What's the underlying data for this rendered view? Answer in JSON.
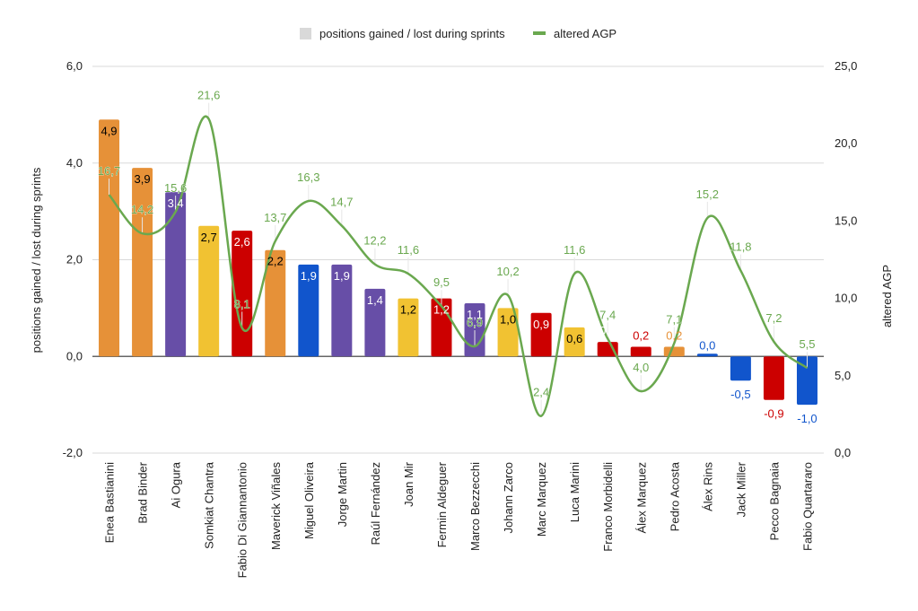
{
  "chart_data": {
    "type": "bar",
    "title": "",
    "legend": {
      "position": "top",
      "entries": [
        {
          "name": "positions gained / lost during sprints",
          "type": "bar",
          "color": "#d9d9d9"
        },
        {
          "name": "altered AGP",
          "type": "line",
          "color": "#6aa84f"
        }
      ]
    },
    "categories": [
      "Enea Bastianini",
      "Brad Binder",
      "Ai Ogura",
      "Somkiat Chantra",
      "Fabio Di Giannantonio",
      "Maverick Viñales",
      "Miguel Oliveira",
      "Jorge Martin",
      "Raúl Fernández",
      "Joan Mir",
      "Fermin Aldeguer",
      "Marco Bezzecchi",
      "Johann  Zarco",
      "Marc Marquez",
      "Luca Marini",
      "Franco Morbidelli",
      "Álex Marquez",
      "Pedro Acosta",
      "Álex Rins",
      "Jack Miller",
      "Pecco Bagnaia",
      "Fabio Quartararo"
    ],
    "series": [
      {
        "name": "positions gained / lost during sprints",
        "type": "bar",
        "axis": "left",
        "values": [
          4.9,
          3.9,
          3.4,
          2.7,
          2.6,
          2.2,
          1.9,
          1.9,
          1.4,
          1.2,
          1.2,
          1.1,
          1.0,
          0.9,
          0.6,
          0.3,
          0.2,
          0.2,
          0.0,
          -0.5,
          -0.9,
          -1.0
        ],
        "labels": [
          "4,9",
          "3,9",
          "3,4",
          "2,7",
          "2,6",
          "2,2",
          "1,9",
          "1,9",
          "1,4",
          "1,2",
          "1,2",
          "1,1",
          "1,0",
          "0,9",
          "0,6",
          "0,3",
          "0,2",
          "0,2",
          "0,0",
          "-0,5",
          "-0,9",
          "-1,0"
        ],
        "colors": [
          "#e69138",
          "#e69138",
          "#674ea7",
          "#f1c232",
          "#cc0000",
          "#e69138",
          "#1155cc",
          "#674ea7",
          "#674ea7",
          "#f1c232",
          "#cc0000",
          "#674ea7",
          "#f1c232",
          "#cc0000",
          "#f1c232",
          "#cc0000",
          "#cc0000",
          "#e69138",
          "#1155cc",
          "#1155cc",
          "#cc0000",
          "#1155cc"
        ],
        "label_colors": [
          "#000000",
          "#000000",
          "#ffffff",
          "#000000",
          "#ffffff",
          "#000000",
          "#ffffff",
          "#ffffff",
          "#ffffff",
          "#000000",
          "#ffffff",
          "#ffffff",
          "#000000",
          "#ffffff",
          "#000000",
          "#ffffff",
          "#cc0000",
          "#e69138",
          "#1155cc",
          "#1155cc",
          "#cc0000",
          "#1155cc"
        ]
      },
      {
        "name": "altered AGP",
        "type": "line",
        "smooth": true,
        "axis": "right",
        "color": "#6aa84f",
        "values": [
          16.7,
          14.2,
          15.6,
          21.6,
          8.1,
          13.7,
          16.3,
          14.7,
          12.2,
          11.6,
          9.5,
          6.9,
          10.2,
          2.4,
          11.6,
          7.4,
          4.0,
          7.1,
          15.2,
          11.8,
          7.2,
          5.5
        ],
        "labels": [
          "16,7",
          "14,2",
          "15,6",
          "21,6",
          "8,1",
          "13,7",
          "16,3",
          "14,7",
          "12,2",
          "11,6",
          "9,5",
          "6,9",
          "10,2",
          "2,4",
          "11,6",
          "7,4",
          "4,0",
          "7,1",
          "15,2",
          "11,8",
          "7,2",
          "5,5"
        ]
      }
    ],
    "left_axis": {
      "title": "positions gained / lost during sprints",
      "range": [
        -2,
        6
      ],
      "ticks": [
        -2,
        0,
        2,
        4,
        6
      ],
      "tick_labels": [
        "-2,0",
        "0,0",
        "2,0",
        "4,0",
        "6,0"
      ]
    },
    "right_axis": {
      "title": "altered AGP",
      "range": [
        0,
        25
      ],
      "ticks": [
        0,
        5,
        10,
        15,
        20,
        25
      ],
      "tick_labels": [
        "0,0",
        "5,0",
        "10,0",
        "15,0",
        "20,0",
        "25,0"
      ]
    },
    "grid": true
  }
}
